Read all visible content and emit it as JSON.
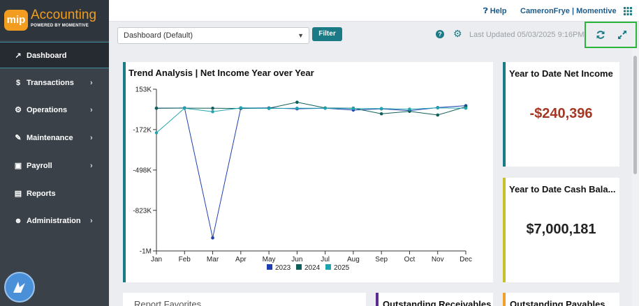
{
  "app": {
    "logo_text": "mip",
    "name": "Accounting",
    "powered_by": "POWERED BY MOMENTIVE"
  },
  "sidebar": {
    "items": [
      {
        "label": "Dashboard",
        "icon": "chart-line-icon",
        "glyph": "↗",
        "active": true,
        "has_children": false
      },
      {
        "label": "Transactions",
        "icon": "dollar-icon",
        "glyph": "$",
        "active": false,
        "has_children": true
      },
      {
        "label": "Operations",
        "icon": "cogs-icon",
        "glyph": "⚙",
        "active": false,
        "has_children": true
      },
      {
        "label": "Maintenance",
        "icon": "wrench-icon",
        "glyph": "✎",
        "active": false,
        "has_children": true
      },
      {
        "label": "Payroll",
        "icon": "money-icon",
        "glyph": "▣",
        "active": false,
        "has_children": true
      },
      {
        "label": "Reports",
        "icon": "file-icon",
        "glyph": "▤",
        "active": false,
        "has_children": false
      },
      {
        "label": "Administration",
        "icon": "users-icon",
        "glyph": "☻",
        "active": false,
        "has_children": true
      }
    ],
    "chevron": "›"
  },
  "topbar": {
    "help_label": "Help",
    "user_label": "CameronFrye | Momentive"
  },
  "toolbar": {
    "dashboard_value": "Dashboard (Default)",
    "filter_label": "Filter",
    "question_glyph": "?",
    "last_updated": "Last Updated 05/03/2025 9:16PM"
  },
  "cards": {
    "trend_title": "Trend Analysis | Net Income Year over Year",
    "ytd_net_income_title": "Year to Date Net Income",
    "ytd_net_income_value": "-$240,396",
    "ytd_cash_title": "Year to Date Cash Bala...",
    "ytd_cash_value": "$7,000,181",
    "report_favorites_title": "Report Favorites",
    "outstanding_receivables_title": "Outstanding Receivables",
    "outstanding_payables_title": "Outstanding Payables"
  },
  "colors": {
    "accent_teal": "#1a7a85",
    "brand_orange": "#f29d1f",
    "negative_red": "#a53825",
    "highlight_green": "#2ab53a",
    "ytd_cash_accent": "#c5c12b",
    "receivables_accent": "#5b2c8f",
    "payables_accent": "#f0a12a"
  },
  "chart_data": {
    "type": "line",
    "title": "Trend Analysis | Net Income Year over Year",
    "categories": [
      "Jan",
      "Feb",
      "Mar",
      "Apr",
      "May",
      "Jun",
      "Jul",
      "Aug",
      "Sep",
      "Oct",
      "Nov",
      "Dec"
    ],
    "y_ticks": [
      "153K",
      "-172K",
      "-498K",
      "-823K",
      "-1M"
    ],
    "y_tick_values": [
      153000,
      -172000,
      -498000,
      -823000,
      -1150000
    ],
    "ylim": [
      -1150000,
      153000
    ],
    "grid": false,
    "legend_position": "bottom",
    "series": [
      {
        "name": "2023",
        "color": "#1f3fae",
        "values": [
          0,
          2000,
          -1045000,
          2000,
          2000,
          -5000,
          0,
          -15000,
          -5000,
          -20000,
          5000,
          20000
        ]
      },
      {
        "name": "2024",
        "color": "#0e5e5a",
        "values": [
          0,
          1000,
          0,
          -2000,
          0,
          48000,
          2000,
          0,
          -45000,
          -25000,
          -55000,
          12000
        ]
      },
      {
        "name": "2025",
        "color": "#1fa3b0",
        "values": [
          -198000,
          0,
          -28000,
          3000,
          -2000,
          0,
          0,
          -3000,
          -3000,
          -8000,
          3000,
          0
        ]
      }
    ]
  }
}
